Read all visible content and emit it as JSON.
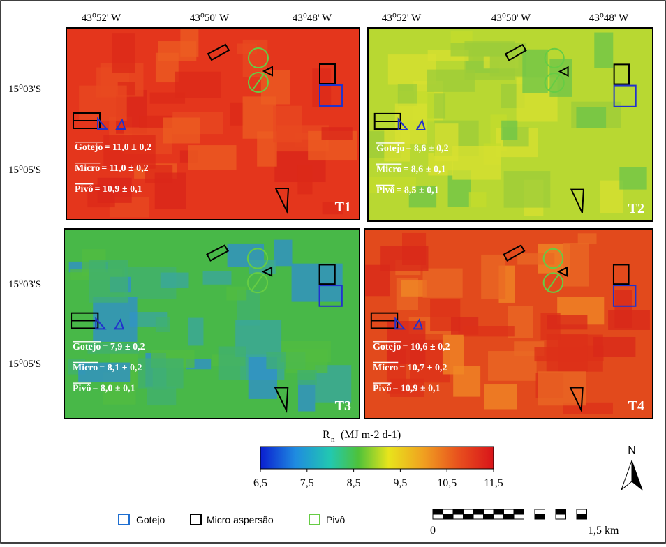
{
  "lon_labels_left": [
    "43⁰52' W",
    "43⁰50' W",
    "43⁰48' W"
  ],
  "lon_labels_right": [
    "43⁰52' W",
    "43⁰50' W",
    "43⁰48' W"
  ],
  "lat_labels_top": [
    "15⁰03'S",
    "15⁰05'S"
  ],
  "lat_labels_bottom": [
    "15⁰03'S",
    "15⁰05'S"
  ],
  "panels": [
    {
      "name": "T1",
      "stats": [
        {
          "label": "Gotejo",
          "value": "= 11,0 ± 0,2"
        },
        {
          "label": "Micro",
          "value": "= 11,0 ± 0,2"
        },
        {
          "label": "Pivô",
          "value": "= 10,9 ± 0,1"
        }
      ]
    },
    {
      "name": "T2",
      "stats": [
        {
          "label": "Gotejo",
          "value": "= 8,6 ± 0,2"
        },
        {
          "label": "Micro",
          "value": "= 8,6 ± 0,1"
        },
        {
          "label": "Pivô",
          "value": "= 8,5 ± 0,1"
        }
      ]
    },
    {
      "name": "T3",
      "stats": [
        {
          "label": "Gotejo",
          "value": "= 7,9 ± 0,2"
        },
        {
          "label": "Micro",
          "value": "= 8,1 ± 0,2"
        },
        {
          "label": "Pivô",
          "value": "= 8,0 ± 0,1"
        }
      ]
    },
    {
      "name": "T4",
      "stats": [
        {
          "label": "Gotejo",
          "value": "= 10,6 ± 0,2"
        },
        {
          "label": "Micro",
          "value": "= 10,7 ± 0,2"
        },
        {
          "label": "Pivô",
          "value": "= 10,9 ± 0,1"
        }
      ]
    }
  ],
  "colorbar": {
    "title": "R",
    "title_sub": "n",
    "units": "(MJ m-2 d-1)",
    "ticks": [
      {
        "value": 6.5,
        "label": "6,5"
      },
      {
        "value": 7.5,
        "label": "7,5"
      },
      {
        "value": 8.5,
        "label": "8,5"
      },
      {
        "value": 9.5,
        "label": "9,5"
      },
      {
        "value": 10.5,
        "label": "10,5"
      },
      {
        "value": 11.5,
        "label": "11,5"
      }
    ]
  },
  "legend": [
    {
      "name": "Gotejo",
      "color": "#1f6fd1"
    },
    {
      "name": "Micro aspersão",
      "color": "#000000"
    },
    {
      "name": "Pivô",
      "color": "#66cc44"
    }
  ],
  "north": "N",
  "scale_bar": {
    "start": "0",
    "end": "1,5 km"
  }
}
